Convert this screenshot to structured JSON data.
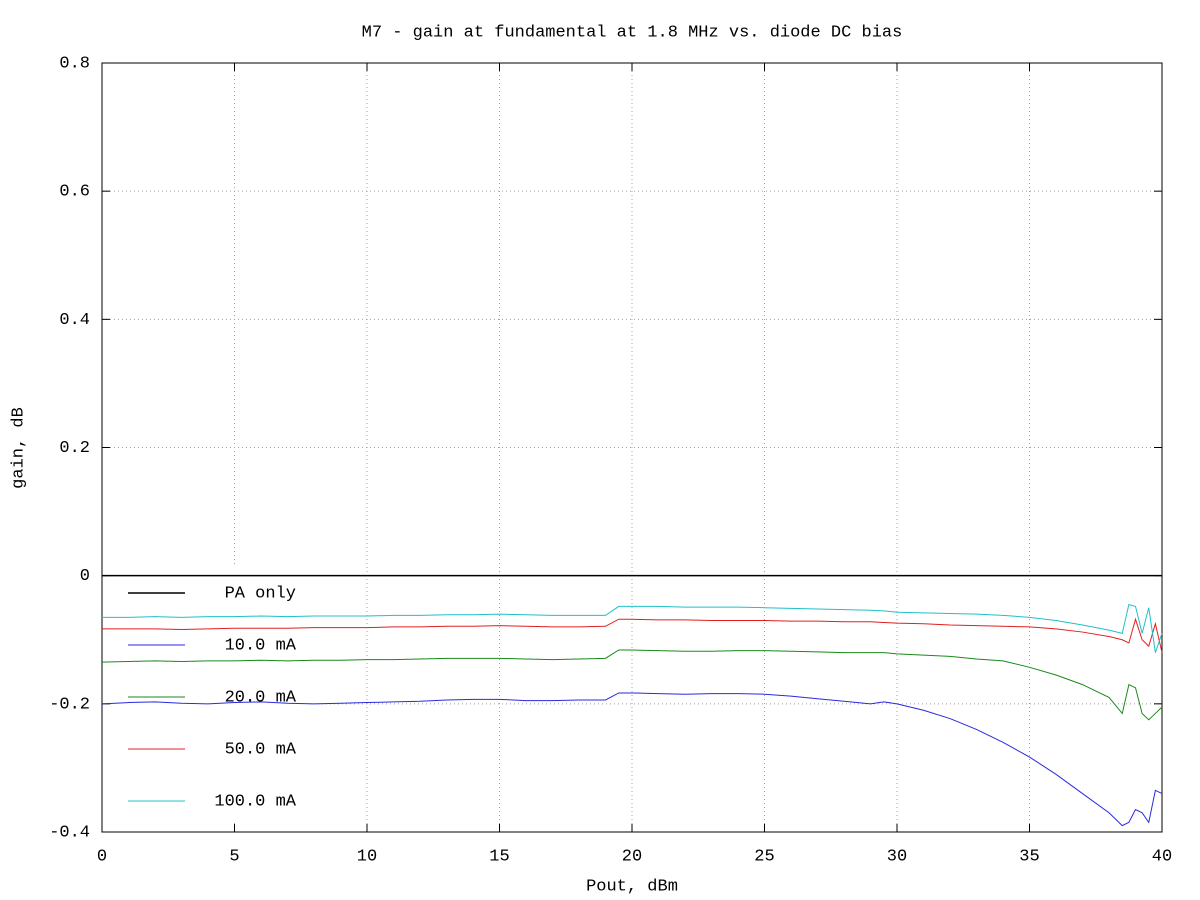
{
  "chart_data": {
    "type": "line",
    "title": "M7 - gain at fundamental at 1.8 MHz vs. diode DC bias",
    "x_label": "Pout, dBm",
    "y_label": "gain, dB",
    "x": [
      0,
      1,
      2,
      3,
      4,
      5,
      6,
      7,
      8,
      9,
      10,
      11,
      12,
      13,
      14,
      15,
      16,
      17,
      18,
      19,
      19.5,
      20,
      21,
      22,
      23,
      24,
      25,
      26,
      27,
      28,
      29,
      29.5,
      30,
      31,
      32,
      33,
      34,
      35,
      36,
      37,
      38,
      38.5,
      38.75,
      39,
      39.25,
      39.5,
      39.75,
      40
    ],
    "series": [
      {
        "name": "PA only",
        "color": "#000000",
        "values": [
          0,
          0,
          0,
          0,
          0,
          0,
          0,
          0,
          0,
          0,
          0,
          0,
          0,
          0,
          0,
          0,
          0,
          0,
          0,
          0,
          0,
          0,
          0,
          0,
          0,
          0,
          0,
          0,
          0,
          0,
          0,
          0,
          0,
          0,
          0,
          0,
          0,
          0,
          0,
          0,
          0,
          0,
          0,
          0,
          0,
          0,
          0,
          0
        ]
      },
      {
        "name": "10.0 mA",
        "color": "#2a2ae0",
        "values": [
          -0.2,
          -0.198,
          -0.197,
          -0.199,
          -0.2,
          -0.198,
          -0.197,
          -0.199,
          -0.2,
          -0.199,
          -0.198,
          -0.197,
          -0.196,
          -0.194,
          -0.193,
          -0.193,
          -0.195,
          -0.195,
          -0.194,
          -0.194,
          -0.183,
          -0.183,
          -0.184,
          -0.185,
          -0.184,
          -0.184,
          -0.185,
          -0.188,
          -0.192,
          -0.196,
          -0.2,
          -0.197,
          -0.2,
          -0.21,
          -0.223,
          -0.24,
          -0.26,
          -0.283,
          -0.31,
          -0.34,
          -0.37,
          -0.39,
          -0.385,
          -0.365,
          -0.37,
          -0.385,
          -0.335,
          -0.34
        ]
      },
      {
        "name": "20.0 mA",
        "color": "#1a8a1a",
        "values": [
          -0.135,
          -0.134,
          -0.133,
          -0.134,
          -0.133,
          -0.133,
          -0.132,
          -0.133,
          -0.132,
          -0.132,
          -0.131,
          -0.131,
          -0.13,
          -0.129,
          -0.129,
          -0.129,
          -0.13,
          -0.131,
          -0.13,
          -0.129,
          -0.116,
          -0.116,
          -0.117,
          -0.118,
          -0.118,
          -0.117,
          -0.117,
          -0.118,
          -0.119,
          -0.12,
          -0.12,
          -0.12,
          -0.122,
          -0.124,
          -0.126,
          -0.13,
          -0.133,
          -0.143,
          -0.155,
          -0.17,
          -0.19,
          -0.215,
          -0.17,
          -0.175,
          -0.215,
          -0.225,
          -0.215,
          -0.205
        ]
      },
      {
        "name": "50.0 mA",
        "color": "#e02020",
        "values": [
          -0.083,
          -0.083,
          -0.083,
          -0.084,
          -0.083,
          -0.082,
          -0.082,
          -0.082,
          -0.081,
          -0.081,
          -0.081,
          -0.08,
          -0.08,
          -0.079,
          -0.079,
          -0.078,
          -0.079,
          -0.08,
          -0.08,
          -0.079,
          -0.068,
          -0.068,
          -0.069,
          -0.069,
          -0.07,
          -0.07,
          -0.07,
          -0.071,
          -0.071,
          -0.072,
          -0.072,
          -0.073,
          -0.074,
          -0.075,
          -0.077,
          -0.078,
          -0.079,
          -0.08,
          -0.083,
          -0.088,
          -0.095,
          -0.1,
          -0.105,
          -0.068,
          -0.1,
          -0.11,
          -0.075,
          -0.12
        ]
      },
      {
        "name": "100.0 mA",
        "color": "#20c0c8",
        "values": [
          -0.065,
          -0.065,
          -0.064,
          -0.065,
          -0.064,
          -0.064,
          -0.063,
          -0.064,
          -0.063,
          -0.063,
          -0.063,
          -0.062,
          -0.062,
          -0.061,
          -0.061,
          -0.06,
          -0.061,
          -0.062,
          -0.062,
          -0.062,
          -0.048,
          -0.048,
          -0.048,
          -0.049,
          -0.049,
          -0.049,
          -0.05,
          -0.051,
          -0.052,
          -0.053,
          -0.054,
          -0.055,
          -0.057,
          -0.058,
          -0.059,
          -0.06,
          -0.062,
          -0.065,
          -0.07,
          -0.077,
          -0.085,
          -0.09,
          -0.045,
          -0.048,
          -0.09,
          -0.05,
          -0.12,
          -0.09
        ]
      }
    ],
    "xlim": [
      0,
      40
    ],
    "xticks": [
      0,
      5,
      10,
      15,
      20,
      25,
      30,
      35,
      40
    ],
    "ylim": [
      -0.4,
      0.8
    ],
    "yticks": [
      0.8,
      0.6,
      0.4,
      0.2,
      0,
      -0.2,
      -0.4
    ],
    "grid": true,
    "legend": "lower left"
  }
}
